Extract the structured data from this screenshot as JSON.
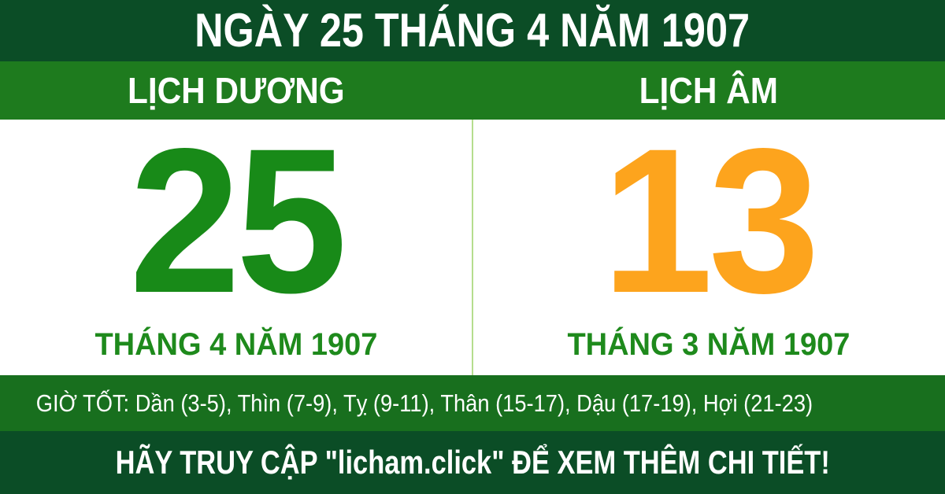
{
  "header": {
    "title": "NGÀY 25 THÁNG 4 NĂM 1907"
  },
  "solar": {
    "label": "LỊCH DƯƠNG",
    "day": "25",
    "subtitle": "THÁNG 4 NĂM 1907"
  },
  "lunar": {
    "label": "LỊCH ÂM",
    "day": "13",
    "subtitle": "THÁNG 3 NĂM 1907"
  },
  "good_hours": {
    "text": "GIỜ TỐT: Dần (3-5), Thìn (7-9), Tỵ (9-11), Thân (15-17), Dậu (17-19), Hợi (21-23)"
  },
  "footer": {
    "message": "HÃY TRUY CẬP \"licham.click\" ĐỂ XEM THÊM CHI TIẾT!"
  },
  "colors": {
    "dark_green": "#0b4d26",
    "band_green": "#1e7b1e",
    "hours_green": "#186f1e",
    "day_green": "#188a18",
    "day_orange": "#fda41d",
    "subtitle_green": "#1e8a1c",
    "divider_green": "#b5dd8e",
    "panel_white": "#ffffff",
    "text_white": "#ffffff"
  }
}
